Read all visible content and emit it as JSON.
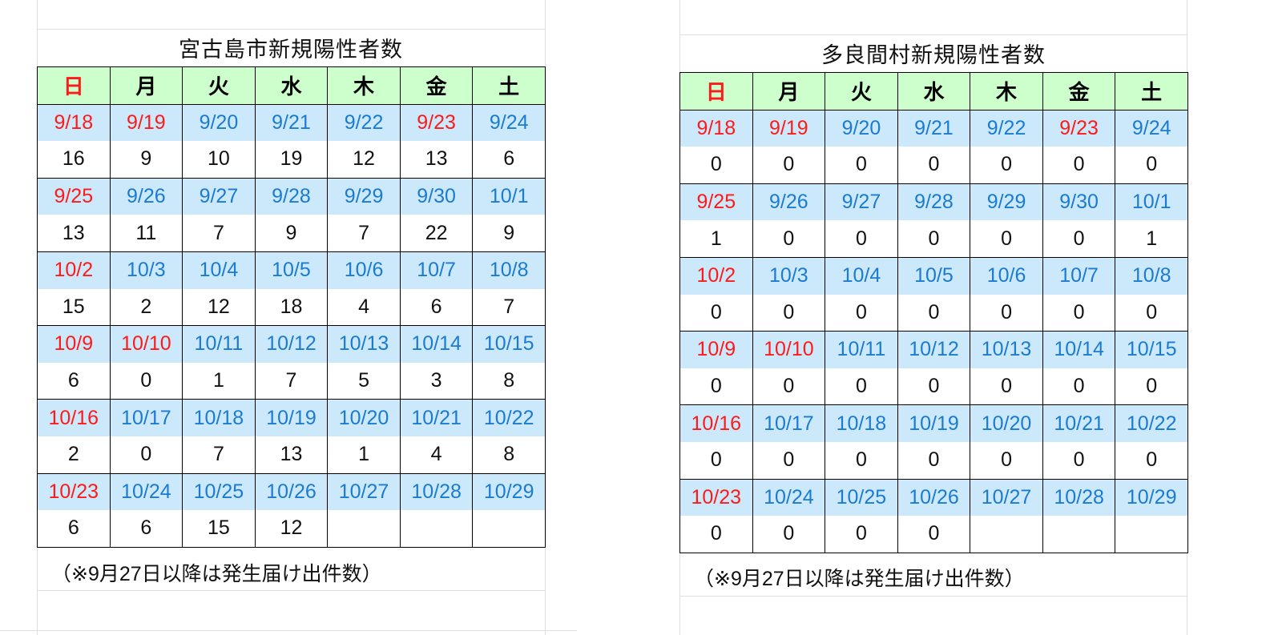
{
  "weekdays": [
    "日",
    "月",
    "火",
    "水",
    "木",
    "金",
    "土"
  ],
  "colors": {
    "header_bg": "#ccffcc",
    "date_bg": "#cce9fc",
    "date_text": "#1b7bd0",
    "holiday_text": "#ff1a1a"
  },
  "weeks_dates": [
    [
      "9/18",
      "9/19",
      "9/20",
      "9/21",
      "9/22",
      "9/23",
      "9/24"
    ],
    [
      "9/25",
      "9/26",
      "9/27",
      "9/28",
      "9/29",
      "9/30",
      "10/1"
    ],
    [
      "10/2",
      "10/3",
      "10/4",
      "10/5",
      "10/6",
      "10/7",
      "10/8"
    ],
    [
      "10/9",
      "10/10",
      "10/11",
      "10/12",
      "10/13",
      "10/14",
      "10/15"
    ],
    [
      "10/16",
      "10/17",
      "10/18",
      "10/19",
      "10/20",
      "10/21",
      "10/22"
    ],
    [
      "10/23",
      "10/24",
      "10/25",
      "10/26",
      "10/27",
      "10/28",
      "10/29"
    ]
  ],
  "holiday_dates": [
    "9/18",
    "9/19",
    "9/23",
    "9/25",
    "10/2",
    "10/9",
    "10/10",
    "10/16",
    "10/23"
  ],
  "tables": [
    {
      "title": "宮古島市新規陽性者数",
      "counts": [
        [
          "16",
          "9",
          "10",
          "19",
          "12",
          "13",
          "6"
        ],
        [
          "13",
          "11",
          "7",
          "9",
          "7",
          "22",
          "9"
        ],
        [
          "15",
          "2",
          "12",
          "18",
          "4",
          "6",
          "7"
        ],
        [
          "6",
          "0",
          "1",
          "7",
          "5",
          "3",
          "8"
        ],
        [
          "2",
          "0",
          "7",
          "13",
          "1",
          "4",
          "8"
        ],
        [
          "6",
          "6",
          "15",
          "12",
          "",
          "",
          ""
        ]
      ],
      "note": "（※9月27日以降は発生届け出件数）"
    },
    {
      "title": "多良間村新規陽性者数",
      "counts": [
        [
          "0",
          "0",
          "0",
          "0",
          "0",
          "0",
          "0"
        ],
        [
          "1",
          "0",
          "0",
          "0",
          "0",
          "0",
          "1"
        ],
        [
          "0",
          "0",
          "0",
          "0",
          "0",
          "0",
          "0"
        ],
        [
          "0",
          "0",
          "0",
          "0",
          "0",
          "0",
          "0"
        ],
        [
          "0",
          "0",
          "0",
          "0",
          "0",
          "0",
          "0"
        ],
        [
          "0",
          "0",
          "0",
          "0",
          "",
          "",
          ""
        ]
      ],
      "note": "（※9月27日以降は発生届け出件数）"
    }
  ]
}
